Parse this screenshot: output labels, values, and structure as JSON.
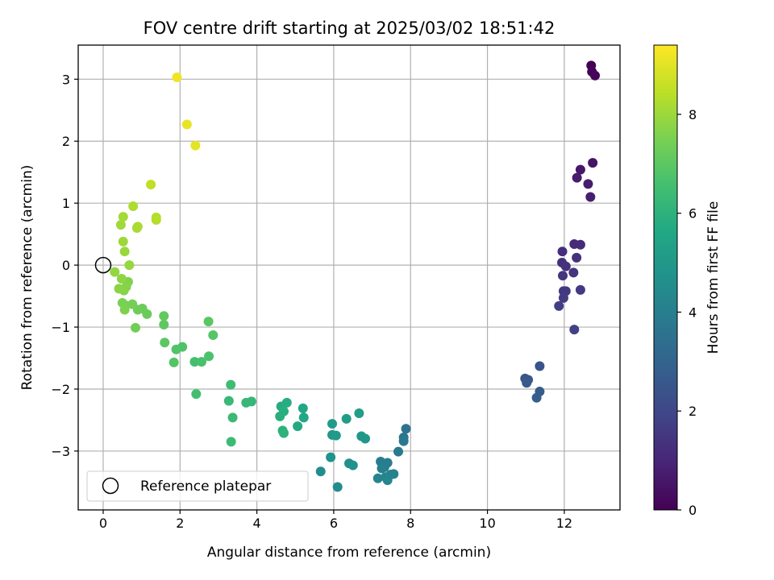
{
  "chart_data": {
    "type": "scatter",
    "title": "FOV centre drift starting at 2025/03/02 18:51:42",
    "xlabel": "Angular distance from reference (arcmin)",
    "ylabel": "Rotation from reference (arcmin)",
    "xlim": [
      -0.65,
      13.45
    ],
    "ylim": [
      -3.95,
      3.55
    ],
    "xticks": [
      0,
      2,
      4,
      6,
      8,
      10,
      12
    ],
    "yticks": [
      -3,
      -2,
      -1,
      0,
      1,
      2,
      3
    ],
    "grid": true,
    "colormap": "viridis",
    "colorbar": {
      "label": "Hours from first FF file",
      "range": [
        0,
        9.4
      ],
      "ticks": [
        0,
        2,
        4,
        6,
        8
      ]
    },
    "legend": {
      "position": "lower-left",
      "entries": [
        "Reference platepar"
      ]
    },
    "reference_point": {
      "x": 0,
      "y": 0
    },
    "points": [
      {
        "x": 12.7,
        "y": 3.22,
        "c": 0.0
      },
      {
        "x": 12.72,
        "y": 3.12,
        "c": 0.05
      },
      {
        "x": 12.8,
        "y": 3.06,
        "c": 0.1
      },
      {
        "x": 12.74,
        "y": 1.65,
        "c": 0.5
      },
      {
        "x": 12.42,
        "y": 1.54,
        "c": 0.6
      },
      {
        "x": 12.33,
        "y": 1.41,
        "c": 0.7
      },
      {
        "x": 12.62,
        "y": 1.31,
        "c": 0.75
      },
      {
        "x": 12.68,
        "y": 1.1,
        "c": 0.8
      },
      {
        "x": 12.26,
        "y": 0.34,
        "c": 1.1
      },
      {
        "x": 12.42,
        "y": 0.33,
        "c": 1.15
      },
      {
        "x": 11.95,
        "y": 0.22,
        "c": 1.2
      },
      {
        "x": 12.32,
        "y": 0.12,
        "c": 1.25
      },
      {
        "x": 11.94,
        "y": 0.04,
        "c": 1.3
      },
      {
        "x": 12.04,
        "y": -0.02,
        "c": 1.35
      },
      {
        "x": 12.24,
        "y": -0.12,
        "c": 1.4
      },
      {
        "x": 11.96,
        "y": -0.17,
        "c": 1.45
      },
      {
        "x": 11.98,
        "y": -0.42,
        "c": 1.5
      },
      {
        "x": 12.04,
        "y": -0.42,
        "c": 1.55
      },
      {
        "x": 12.42,
        "y": -0.4,
        "c": 1.6
      },
      {
        "x": 11.98,
        "y": -0.53,
        "c": 1.65
      },
      {
        "x": 11.86,
        "y": -0.66,
        "c": 1.7
      },
      {
        "x": 12.26,
        "y": -1.04,
        "c": 1.8
      },
      {
        "x": 11.36,
        "y": -1.63,
        "c": 2.4
      },
      {
        "x": 10.98,
        "y": -1.83,
        "c": 2.5
      },
      {
        "x": 11.06,
        "y": -1.85,
        "c": 2.55
      },
      {
        "x": 11.02,
        "y": -1.9,
        "c": 2.6
      },
      {
        "x": 11.36,
        "y": -2.04,
        "c": 2.7
      },
      {
        "x": 11.28,
        "y": -2.14,
        "c": 2.75
      },
      {
        "x": 7.88,
        "y": -2.64,
        "c": 3.6
      },
      {
        "x": 7.82,
        "y": -2.78,
        "c": 3.7
      },
      {
        "x": 7.82,
        "y": -2.84,
        "c": 3.75
      },
      {
        "x": 7.68,
        "y": -3.01,
        "c": 3.8
      },
      {
        "x": 7.22,
        "y": -3.17,
        "c": 3.9
      },
      {
        "x": 7.4,
        "y": -3.19,
        "c": 3.95
      },
      {
        "x": 7.32,
        "y": -3.26,
        "c": 4.0
      },
      {
        "x": 7.25,
        "y": -3.28,
        "c": 4.05
      },
      {
        "x": 7.56,
        "y": -3.37,
        "c": 4.1
      },
      {
        "x": 7.48,
        "y": -3.38,
        "c": 4.15
      },
      {
        "x": 7.35,
        "y": -3.42,
        "c": 4.2
      },
      {
        "x": 7.15,
        "y": -3.44,
        "c": 4.25
      },
      {
        "x": 7.4,
        "y": -3.47,
        "c": 4.3
      },
      {
        "x": 6.1,
        "y": -3.58,
        "c": 4.5
      },
      {
        "x": 5.66,
        "y": -3.33,
        "c": 4.6
      },
      {
        "x": 6.4,
        "y": -3.2,
        "c": 4.65
      },
      {
        "x": 6.5,
        "y": -3.23,
        "c": 4.7
      },
      {
        "x": 5.92,
        "y": -3.1,
        "c": 4.75
      },
      {
        "x": 6.82,
        "y": -2.8,
        "c": 4.9
      },
      {
        "x": 6.72,
        "y": -2.76,
        "c": 4.95
      },
      {
        "x": 5.96,
        "y": -2.74,
        "c": 5.0
      },
      {
        "x": 6.06,
        "y": -2.75,
        "c": 5.05
      },
      {
        "x": 5.96,
        "y": -2.56,
        "c": 5.1
      },
      {
        "x": 6.33,
        "y": -2.48,
        "c": 5.15
      },
      {
        "x": 6.66,
        "y": -2.39,
        "c": 5.2
      },
      {
        "x": 5.2,
        "y": -2.31,
        "c": 5.6
      },
      {
        "x": 5.22,
        "y": -2.46,
        "c": 5.65
      },
      {
        "x": 5.06,
        "y": -2.6,
        "c": 5.7
      },
      {
        "x": 4.63,
        "y": -2.28,
        "c": 5.75
      },
      {
        "x": 4.78,
        "y": -2.22,
        "c": 5.8
      },
      {
        "x": 4.7,
        "y": -2.36,
        "c": 5.85
      },
      {
        "x": 4.6,
        "y": -2.44,
        "c": 5.9
      },
      {
        "x": 4.67,
        "y": -2.67,
        "c": 5.95
      },
      {
        "x": 4.7,
        "y": -2.71,
        "c": 6.0
      },
      {
        "x": 3.86,
        "y": -2.2,
        "c": 6.2
      },
      {
        "x": 3.72,
        "y": -2.22,
        "c": 6.25
      },
      {
        "x": 3.27,
        "y": -2.19,
        "c": 6.3
      },
      {
        "x": 3.37,
        "y": -2.46,
        "c": 6.35
      },
      {
        "x": 3.33,
        "y": -2.85,
        "c": 6.4
      },
      {
        "x": 3.32,
        "y": -1.93,
        "c": 6.45
      },
      {
        "x": 2.42,
        "y": -2.08,
        "c": 6.55
      },
      {
        "x": 2.38,
        "y": -1.56,
        "c": 6.6
      },
      {
        "x": 2.56,
        "y": -1.56,
        "c": 6.65
      },
      {
        "x": 2.75,
        "y": -1.47,
        "c": 6.7
      },
      {
        "x": 2.06,
        "y": -1.32,
        "c": 6.75
      },
      {
        "x": 1.9,
        "y": -1.36,
        "c": 6.8
      },
      {
        "x": 1.84,
        "y": -1.57,
        "c": 6.85
      },
      {
        "x": 2.86,
        "y": -1.13,
        "c": 6.9
      },
      {
        "x": 2.74,
        "y": -0.91,
        "c": 6.95
      },
      {
        "x": 1.6,
        "y": -1.25,
        "c": 7.0
      },
      {
        "x": 1.58,
        "y": -0.96,
        "c": 7.05
      },
      {
        "x": 1.58,
        "y": -0.82,
        "c": 7.1
      },
      {
        "x": 1.14,
        "y": -0.79,
        "c": 7.2
      },
      {
        "x": 1.02,
        "y": -0.7,
        "c": 7.25
      },
      {
        "x": 0.9,
        "y": -0.72,
        "c": 7.3
      },
      {
        "x": 0.84,
        "y": -1.01,
        "c": 7.35
      },
      {
        "x": 0.76,
        "y": -0.63,
        "c": 7.4
      },
      {
        "x": 0.58,
        "y": -0.65,
        "c": 7.45
      },
      {
        "x": 0.5,
        "y": -0.61,
        "c": 7.5
      },
      {
        "x": 0.56,
        "y": -0.72,
        "c": 7.55
      },
      {
        "x": 0.65,
        "y": -0.27,
        "c": 7.6
      },
      {
        "x": 0.6,
        "y": -0.35,
        "c": 7.65
      },
      {
        "x": 0.54,
        "y": -0.41,
        "c": 7.7
      },
      {
        "x": 0.41,
        "y": -0.38,
        "c": 7.75
      },
      {
        "x": 0.48,
        "y": -0.22,
        "c": 7.8
      },
      {
        "x": 0.3,
        "y": -0.11,
        "c": 7.85
      },
      {
        "x": 0.68,
        "y": 0.0,
        "c": 7.9
      },
      {
        "x": 0.56,
        "y": 0.22,
        "c": 7.95
      },
      {
        "x": 0.52,
        "y": 0.38,
        "c": 8.0
      },
      {
        "x": 0.46,
        "y": 0.65,
        "c": 8.05
      },
      {
        "x": 0.52,
        "y": 0.78,
        "c": 8.1
      },
      {
        "x": 0.88,
        "y": 0.6,
        "c": 8.15
      },
      {
        "x": 0.9,
        "y": 0.62,
        "c": 8.2
      },
      {
        "x": 0.78,
        "y": 0.95,
        "c": 8.25
      },
      {
        "x": 1.38,
        "y": 0.77,
        "c": 8.3
      },
      {
        "x": 1.38,
        "y": 0.73,
        "c": 8.35
      },
      {
        "x": 1.24,
        "y": 1.3,
        "c": 8.5
      },
      {
        "x": 2.4,
        "y": 1.93,
        "c": 9.0
      },
      {
        "x": 2.18,
        "y": 2.27,
        "c": 9.1
      },
      {
        "x": 1.92,
        "y": 3.03,
        "c": 9.2
      }
    ]
  }
}
